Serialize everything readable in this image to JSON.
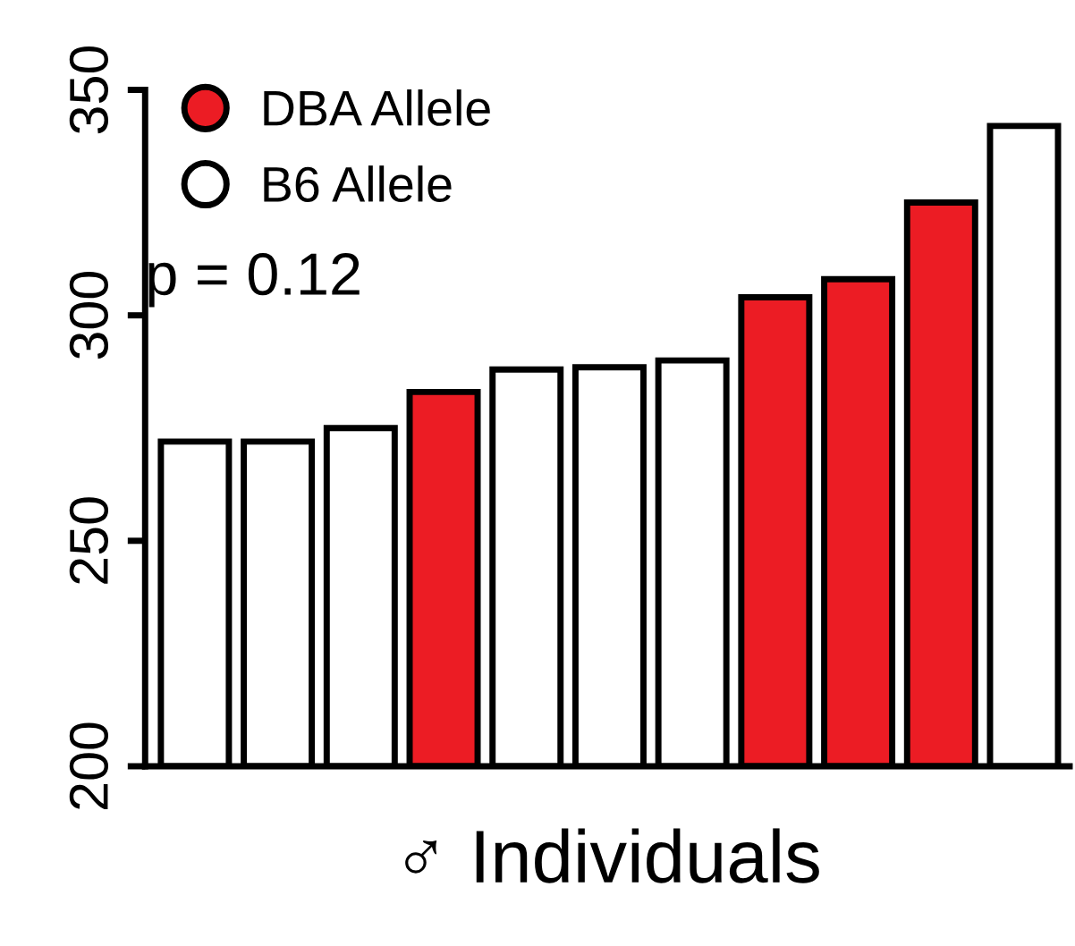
{
  "chart_data": {
    "type": "bar",
    "xlabel": "♂ Individuals",
    "categories": [
      null,
      null,
      null,
      null,
      null,
      null,
      null,
      null,
      null,
      null,
      null
    ],
    "series": [
      {
        "name": "DBA Allele",
        "color": "#ec1c24",
        "values": [
          null,
          null,
          null,
          283,
          null,
          null,
          null,
          304,
          308,
          325,
          null
        ]
      },
      {
        "name": "B6 Allele",
        "color": "#ffffff",
        "values": [
          272,
          272,
          275,
          null,
          288,
          288.5,
          290,
          null,
          null,
          null,
          342
        ]
      }
    ],
    "ylim": [
      200,
      350
    ],
    "yticks": [
      200,
      250,
      300,
      350
    ],
    "tick_labels": "y",
    "legend": "top left",
    "grid": false,
    "annotations": [
      "p = 0.12"
    ]
  }
}
